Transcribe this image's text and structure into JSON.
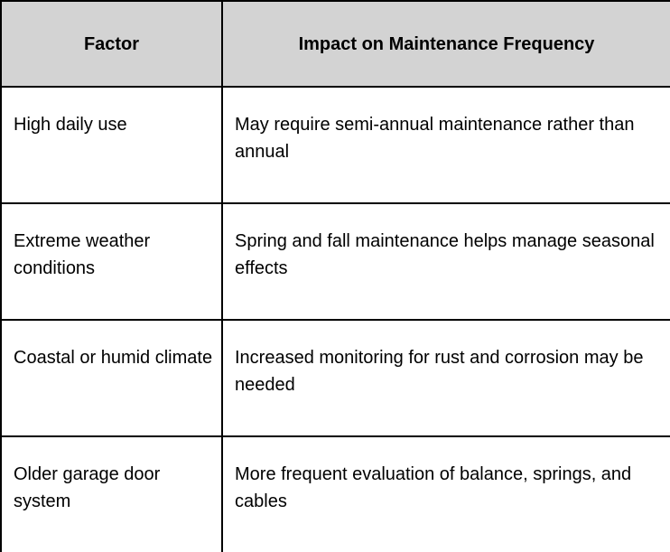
{
  "colors": {
    "header_bg": "#d3d3d3",
    "border": "#000000",
    "text": "#000000",
    "body_bg": "#ffffff"
  },
  "table": {
    "columns": [
      {
        "label": "Factor"
      },
      {
        "label": "Impact on Maintenance Frequency"
      }
    ],
    "rows": [
      {
        "factor": "High daily use",
        "impact": "May require semi-annual maintenance rather than annual"
      },
      {
        "factor": "Extreme weather conditions",
        "impact": "Spring and fall maintenance helps manage seasonal effects"
      },
      {
        "factor": "Coastal or humid climate",
        "impact": "Increased monitoring for rust and corrosion may be needed"
      },
      {
        "factor": "Older garage door system",
        "impact": "More frequent evaluation of balance, springs, and cables"
      }
    ]
  }
}
